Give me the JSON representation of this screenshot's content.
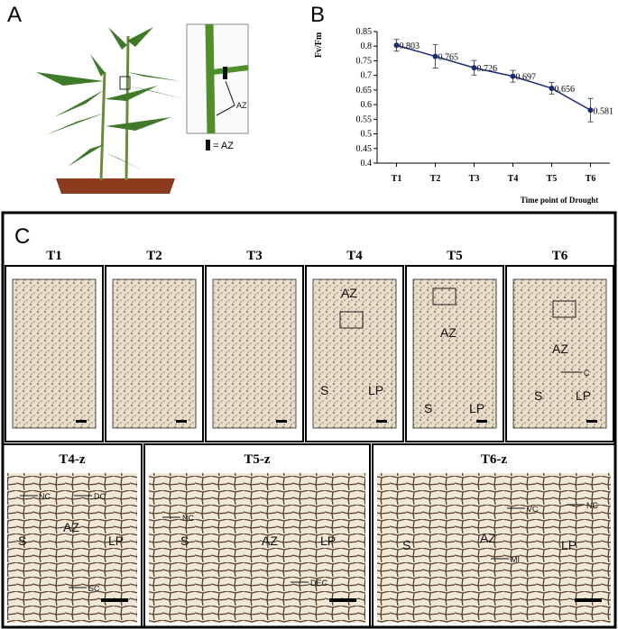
{
  "panel_labels": [
    "A",
    "B",
    "C"
  ],
  "panel_a": {
    "inset_label": "AZ",
    "legend": "= AZ"
  },
  "chart_data": {
    "type": "line",
    "y_label": "Fv/Fm",
    "x_label": "Time point of Drought",
    "categories": [
      "T1",
      "T2",
      "T3",
      "T4",
      "T5",
      "T6"
    ],
    "values": [
      0.803,
      0.765,
      0.726,
      0.697,
      0.656,
      0.581
    ],
    "errors": [
      0.02,
      0.04,
      0.025,
      0.02,
      0.02,
      0.04
    ],
    "color": "#1c2a78",
    "ylim": [
      0.4,
      0.85
    ],
    "yticks": [
      0.4,
      0.45,
      0.5,
      0.55,
      0.6,
      0.65,
      0.7,
      0.75,
      0.8,
      0.85
    ]
  },
  "panel_c": {
    "titles": [
      "T1",
      "T2",
      "T3",
      "T4",
      "T5",
      "T6"
    ],
    "t4": [
      "AZ",
      "S",
      "LP"
    ],
    "t5": [
      "AZ",
      "S",
      "LP"
    ],
    "t6": [
      "AZ",
      "C",
      "S",
      "LP"
    ],
    "zoom_titles": [
      "T4-z",
      "T5-z",
      "T6-z"
    ],
    "t4z": [
      "NC",
      "DC",
      "S",
      "AZ",
      "LP",
      "SC"
    ],
    "t5z": [
      "NC",
      "S",
      "AZ",
      "LP",
      "DEC"
    ],
    "t6z": [
      "VC",
      "NC",
      "S",
      "AZ",
      "LP",
      "MI"
    ]
  }
}
